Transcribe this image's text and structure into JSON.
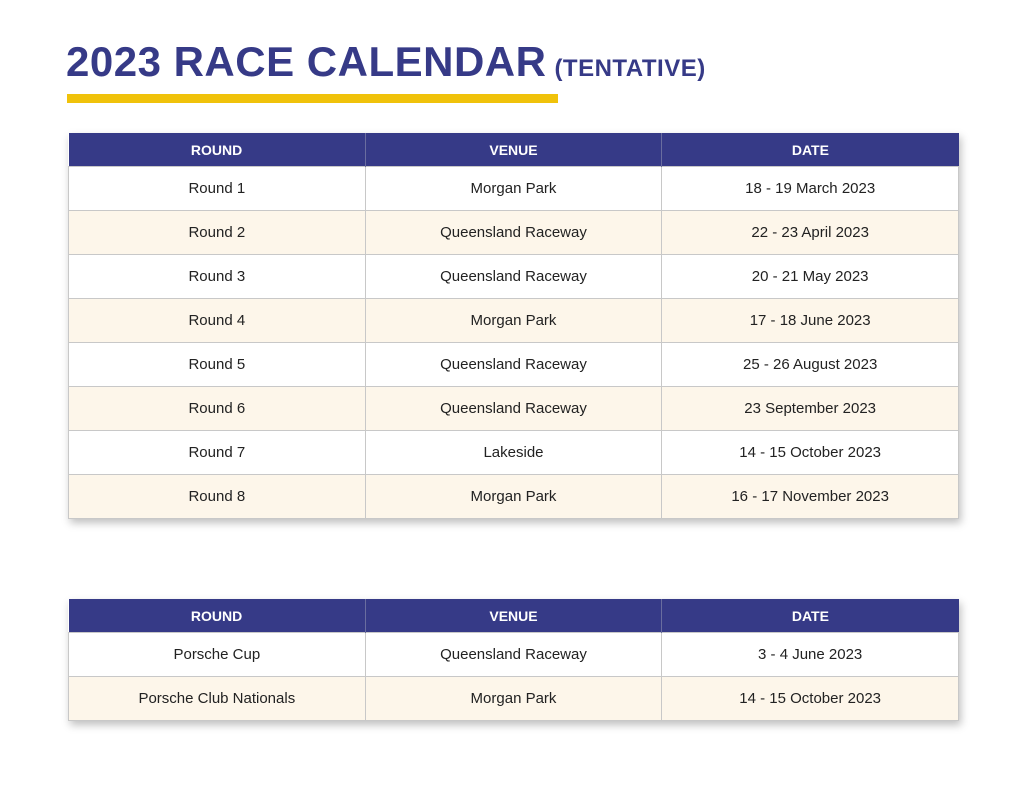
{
  "title": {
    "main": "2023 RACE CALENDAR",
    "sub": "(TENTATIVE)"
  },
  "colors": {
    "header": "#363a87",
    "accent": "#f0c20a",
    "alt_row": "#fdf6ea"
  },
  "headers": [
    "ROUND",
    "VENUE",
    "DATE"
  ],
  "table1": [
    [
      "Round 1",
      "Morgan Park",
      "18 - 19 March 2023"
    ],
    [
      "Round 2",
      "Queensland Raceway",
      "22 - 23 April 2023"
    ],
    [
      "Round 3",
      "Queensland Raceway",
      "20 - 21 May 2023"
    ],
    [
      "Round 4",
      "Morgan Park",
      "17 - 18 June 2023"
    ],
    [
      "Round 5",
      "Queensland Raceway",
      "25 - 26 August 2023"
    ],
    [
      "Round 6",
      "Queensland Raceway",
      "23 September 2023"
    ],
    [
      "Round 7",
      "Lakeside",
      "14 - 15 October 2023"
    ],
    [
      "Round 8",
      "Morgan Park",
      "16 - 17 November 2023"
    ]
  ],
  "table2": [
    [
      "Porsche Cup",
      "Queensland Raceway",
      "3 - 4 June 2023"
    ],
    [
      "Porsche Club Nationals",
      "Morgan Park",
      "14 - 15 October 2023"
    ]
  ]
}
